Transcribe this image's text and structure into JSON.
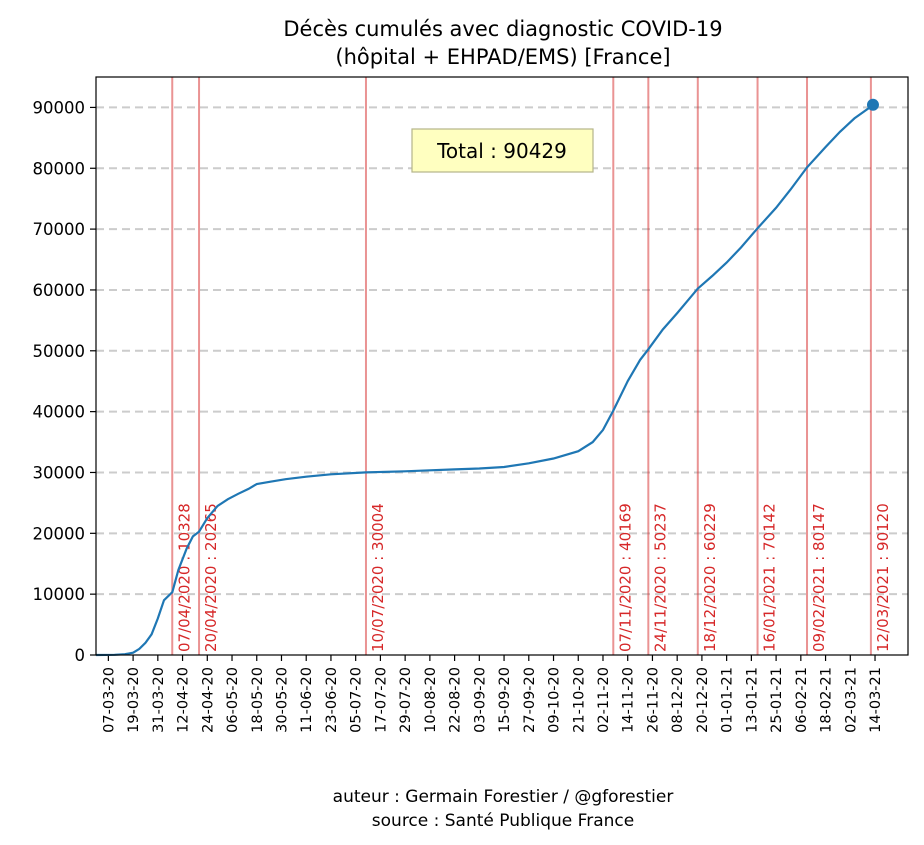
{
  "chart_data": {
    "type": "line",
    "title": [
      "Décès cumulés avec diagnostic COVID-19",
      "(hôpital + EHPAD/EMS) [France]"
    ],
    "xlabel": "",
    "ylabel": "",
    "x_range": [
      "2020-03-01",
      "2021-03-30"
    ],
    "ylim": [
      0,
      95000
    ],
    "y_ticks": [
      0,
      10000,
      20000,
      30000,
      40000,
      50000,
      60000,
      70000,
      80000,
      90000
    ],
    "x_ticks": [
      {
        "date": "2020-03-07",
        "label": "07-03-20"
      },
      {
        "date": "2020-03-19",
        "label": "19-03-20"
      },
      {
        "date": "2020-03-31",
        "label": "31-03-20"
      },
      {
        "date": "2020-04-12",
        "label": "12-04-20"
      },
      {
        "date": "2020-04-24",
        "label": "24-04-20"
      },
      {
        "date": "2020-05-06",
        "label": "06-05-20"
      },
      {
        "date": "2020-05-18",
        "label": "18-05-20"
      },
      {
        "date": "2020-05-30",
        "label": "30-05-20"
      },
      {
        "date": "2020-06-11",
        "label": "11-06-20"
      },
      {
        "date": "2020-06-23",
        "label": "23-06-20"
      },
      {
        "date": "2020-07-05",
        "label": "05-07-20"
      },
      {
        "date": "2020-07-17",
        "label": "17-07-20"
      },
      {
        "date": "2020-07-29",
        "label": "29-07-20"
      },
      {
        "date": "2020-08-10",
        "label": "10-08-20"
      },
      {
        "date": "2020-08-22",
        "label": "22-08-20"
      },
      {
        "date": "2020-09-03",
        "label": "03-09-20"
      },
      {
        "date": "2020-09-15",
        "label": "15-09-20"
      },
      {
        "date": "2020-09-27",
        "label": "27-09-20"
      },
      {
        "date": "2020-10-09",
        "label": "09-10-20"
      },
      {
        "date": "2020-10-21",
        "label": "21-10-20"
      },
      {
        "date": "2020-11-02",
        "label": "02-11-20"
      },
      {
        "date": "2020-11-14",
        "label": "14-11-20"
      },
      {
        "date": "2020-11-26",
        "label": "26-11-20"
      },
      {
        "date": "2020-12-08",
        "label": "08-12-20"
      },
      {
        "date": "2020-12-20",
        "label": "20-12-20"
      },
      {
        "date": "2021-01-01",
        "label": "01-01-21"
      },
      {
        "date": "2021-01-13",
        "label": "13-01-21"
      },
      {
        "date": "2021-01-25",
        "label": "25-01-21"
      },
      {
        "date": "2021-02-06",
        "label": "06-02-21"
      },
      {
        "date": "2021-02-18",
        "label": "18-02-21"
      },
      {
        "date": "2021-03-02",
        "label": "02-03-21"
      },
      {
        "date": "2021-03-14",
        "label": "14-03-21"
      }
    ],
    "grid": "horizontal dashed",
    "series": [
      {
        "color": "#1f77b4",
        "points": [
          [
            "2020-03-01",
            0
          ],
          [
            "2020-03-10",
            40
          ],
          [
            "2020-03-15",
            130
          ],
          [
            "2020-03-19",
            380
          ],
          [
            "2020-03-22",
            1000
          ],
          [
            "2020-03-25",
            2000
          ],
          [
            "2020-03-28",
            3400
          ],
          [
            "2020-03-31",
            6000
          ],
          [
            "2020-04-03",
            9000
          ],
          [
            "2020-04-07",
            10328
          ],
          [
            "2020-04-10",
            14000
          ],
          [
            "2020-04-14",
            17500
          ],
          [
            "2020-04-17",
            19500
          ],
          [
            "2020-04-20",
            20265
          ],
          [
            "2020-04-24",
            22500
          ],
          [
            "2020-04-29",
            24500
          ],
          [
            "2020-05-04",
            25600
          ],
          [
            "2020-05-09",
            26500
          ],
          [
            "2020-05-14",
            27300
          ],
          [
            "2020-05-18",
            28100
          ],
          [
            "2020-05-25",
            28500
          ],
          [
            "2020-06-01",
            28900
          ],
          [
            "2020-06-11",
            29300
          ],
          [
            "2020-06-23",
            29700
          ],
          [
            "2020-07-10",
            30004
          ],
          [
            "2020-07-29",
            30200
          ],
          [
            "2020-08-10",
            30350
          ],
          [
            "2020-08-22",
            30500
          ],
          [
            "2020-09-03",
            30650
          ],
          [
            "2020-09-15",
            30900
          ],
          [
            "2020-09-27",
            31500
          ],
          [
            "2020-10-09",
            32300
          ],
          [
            "2020-10-21",
            33500
          ],
          [
            "2020-10-28",
            35000
          ],
          [
            "2020-11-02",
            37000
          ],
          [
            "2020-11-07",
            40169
          ],
          [
            "2020-11-14",
            45000
          ],
          [
            "2020-11-20",
            48500
          ],
          [
            "2020-11-24",
            50237
          ],
          [
            "2020-12-01",
            53500
          ],
          [
            "2020-12-08",
            56200
          ],
          [
            "2020-12-18",
            60229
          ],
          [
            "2020-12-25",
            62300
          ],
          [
            "2021-01-01",
            64500
          ],
          [
            "2021-01-08",
            67000
          ],
          [
            "2021-01-16",
            70142
          ],
          [
            "2021-01-25",
            73500
          ],
          [
            "2021-02-01",
            76500
          ],
          [
            "2021-02-09",
            80147
          ],
          [
            "2021-02-18",
            83500
          ],
          [
            "2021-02-25",
            86000
          ],
          [
            "2021-03-04",
            88200
          ],
          [
            "2021-03-12",
            90120
          ],
          [
            "2021-03-13",
            90429
          ]
        ]
      }
    ],
    "final_point": {
      "date": "2021-03-13",
      "value": 90429
    },
    "milestones": [
      {
        "date": "2020-04-07",
        "label": "07/04/2020 : 10328"
      },
      {
        "date": "2020-04-20",
        "label": "20/04/2020 : 20265"
      },
      {
        "date": "2020-07-10",
        "label": "10/07/2020 : 30004"
      },
      {
        "date": "2020-11-07",
        "label": "07/11/2020 : 40169"
      },
      {
        "date": "2020-11-24",
        "label": "24/11/2020 : 50237"
      },
      {
        "date": "2020-12-18",
        "label": "18/12/2020 : 60229"
      },
      {
        "date": "2021-01-16",
        "label": "16/01/2021 : 70142"
      },
      {
        "date": "2021-02-09",
        "label": "09/02/2021 : 80147"
      },
      {
        "date": "2021-03-12",
        "label": "12/03/2021 : 90120"
      }
    ],
    "annotation": "Total : 90429",
    "colors": {
      "line": "#1f77b4",
      "milestone": "#d62728",
      "grid": "#cccccc",
      "annotation_bg": "#ffffc0"
    }
  },
  "footer": {
    "author": "auteur : Germain Forestier / @gforestier",
    "source": "source : Santé Publique France"
  }
}
